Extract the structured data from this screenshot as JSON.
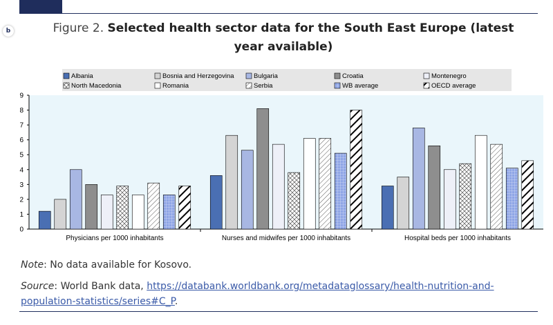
{
  "header": {
    "side_icon": "b",
    "title_prefix": "Figure 2.",
    "title_bold": "Selected health sector data for the South East Europe (latest year available)"
  },
  "footer": {
    "note_label": "Note",
    "note_text": ": No data available for Kosovo.",
    "source_label": "Source",
    "source_text": ": World Bank data, ",
    "source_link": "https://databank.worldbank.org/metadataglossary/health-nutrition-and-population-statistics/series#C_P",
    "source_end": "."
  },
  "chart_data": {
    "type": "bar",
    "categories": [
      "Physicians per 1000 inhabitants",
      "Nurses and midwifes per 1000 inhabitants",
      "Hospital beds per 1000 inhabitants"
    ],
    "ylim": [
      0,
      9
    ],
    "yticks": [
      "0",
      "1",
      "2",
      "3",
      "4",
      "5",
      "6",
      "7",
      "8",
      "9"
    ],
    "legend_position": "top",
    "series": [
      {
        "name": "Albania",
        "values": [
          1.2,
          3.6,
          2.9
        ],
        "fill": "#4a6fb3",
        "pattern": "solid"
      },
      {
        "name": "Bosnia and Herzegovina",
        "values": [
          2.0,
          6.3,
          3.5
        ],
        "fill": "#d4d4d4",
        "pattern": "solid"
      },
      {
        "name": "Bulgaria",
        "values": [
          4.0,
          5.3,
          6.8
        ],
        "fill": "#a8b7e3",
        "pattern": "solid"
      },
      {
        "name": "Croatia",
        "values": [
          3.0,
          8.1,
          5.6
        ],
        "fill": "#8e8e8e",
        "pattern": "solid"
      },
      {
        "name": "Montenegro",
        "values": [
          2.3,
          5.7,
          4.0
        ],
        "fill": "#eef0f8",
        "pattern": "solid"
      },
      {
        "name": "North Macedonia",
        "values": [
          2.9,
          3.8,
          4.4
        ],
        "fill": "#ffffff",
        "pattern": "crosshatch"
      },
      {
        "name": "Romania",
        "values": [
          2.3,
          6.1,
          6.3
        ],
        "fill": "#ffffff",
        "pattern": "solid"
      },
      {
        "name": "Serbia",
        "values": [
          3.1,
          6.1,
          5.7
        ],
        "fill": "#ffffff",
        "pattern": "diag"
      },
      {
        "name": "WB average",
        "values": [
          2.3,
          5.1,
          4.1
        ],
        "fill": "#8fa6e6",
        "pattern": "grid"
      },
      {
        "name": "OECD average",
        "values": [
          2.9,
          8.0,
          4.6
        ],
        "fill": "#ffffff",
        "pattern": "bold-diag"
      }
    ]
  }
}
